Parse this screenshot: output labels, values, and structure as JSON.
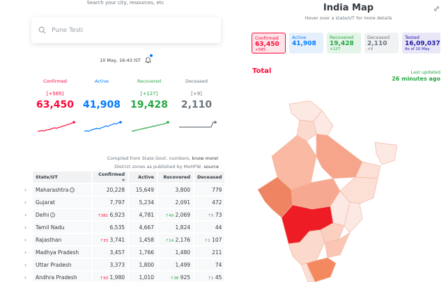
{
  "search": {
    "hint": "Search your city, resources, etc",
    "placeholder": "Pune Testi"
  },
  "date": "10 May, 16:43 IST",
  "stats": [
    {
      "label": "Confirmed",
      "delta": "[+585]",
      "value": "63,450",
      "color": "#ff073a"
    },
    {
      "label": "Active",
      "delta": "",
      "value": "41,908",
      "color": "#007bff"
    },
    {
      "label": "Recovered",
      "delta": "[+127]",
      "value": "19,428",
      "color": "#28a745"
    },
    {
      "label": "Deceased",
      "delta": "[+9]",
      "value": "2,110",
      "color": "#6c757d"
    }
  ],
  "sparklines": [
    {
      "color": "#ff073a",
      "values": [
        5,
        6,
        7,
        6,
        8,
        9,
        10,
        12,
        13,
        12,
        14,
        15,
        17,
        18,
        20,
        21,
        23,
        25
      ]
    },
    {
      "color": "#007bff",
      "values": [
        5,
        6,
        5,
        7,
        8,
        9,
        10,
        9,
        11,
        12,
        14,
        13,
        15,
        16,
        18,
        17,
        19,
        20
      ]
    },
    {
      "color": "#28a745",
      "values": [
        3,
        3,
        4,
        4,
        5,
        5,
        6,
        6,
        7,
        7,
        8,
        8,
        9,
        9,
        10,
        10,
        11,
        12
      ]
    },
    {
      "color": "#6c757d",
      "values": [
        4,
        4,
        4,
        4,
        4,
        4,
        4,
        4,
        4,
        4,
        4,
        4,
        4,
        4,
        4,
        4,
        5,
        5
      ]
    }
  ],
  "compiled": {
    "line1_pre": "Compiled from State Govt. numbers, ",
    "line1_link": "know more!",
    "line2_pre": "District zones as published by MoHFW, ",
    "line2_link": "source"
  },
  "table": {
    "headers": [
      "State/UT",
      "Confirmed",
      "Active",
      "Recovered",
      "Deceased"
    ],
    "sort_icon": "▼",
    "rows": [
      {
        "name": "Maharashtra",
        "info": true,
        "c_d": "",
        "c": "20,228",
        "a": "15,649",
        "r_d": "",
        "r": "3,800",
        "d_d": "",
        "d": "779"
      },
      {
        "name": "Gujarat",
        "info": false,
        "c_d": "",
        "c": "7,797",
        "a": "5,234",
        "r_d": "",
        "r": "2,091",
        "d_d": "",
        "d": "472"
      },
      {
        "name": "Delhi",
        "info": true,
        "c_d": "↑381",
        "c": "6,923",
        "a": "4,781",
        "r_d": "↑49",
        "r": "2,069",
        "d_d": "↑5",
        "d": "73"
      },
      {
        "name": "Tamil Nadu",
        "info": false,
        "c_d": "",
        "c": "6,535",
        "a": "4,667",
        "r_d": "",
        "r": "1,824",
        "d_d": "",
        "d": "44"
      },
      {
        "name": "Rajasthan",
        "info": false,
        "c_d": "↑33",
        "c": "3,741",
        "a": "1,458",
        "r_d": "↑14",
        "r": "2,176",
        "d_d": "↑1",
        "d": "107"
      },
      {
        "name": "Madhya Pradesh",
        "info": false,
        "c_d": "",
        "c": "3,457",
        "a": "1,766",
        "r_d": "",
        "r": "1,480",
        "d_d": "",
        "d": "211"
      },
      {
        "name": "Uttar Pradesh",
        "info": false,
        "c_d": "",
        "c": "3,373",
        "a": "1,800",
        "r_d": "",
        "r": "1,499",
        "d_d": "",
        "d": "74"
      },
      {
        "name": "Andhra Pradesh",
        "info": false,
        "c_d": "↑50",
        "c": "1,980",
        "a": "1,010",
        "r_d": "↑38",
        "r": "925",
        "d_d": "↑1",
        "d": "45"
      }
    ]
  },
  "map": {
    "title": "India Map",
    "subtitle": "Hover over a state/UT for more details",
    "tiles": [
      {
        "label": "Confirmed",
        "value": "63,450",
        "delta": "+585",
        "bg": "#fde5e9",
        "fg": "#ff073a"
      },
      {
        "label": "Active",
        "value": "41,908",
        "delta": "",
        "bg": "#e6f0fd",
        "fg": "#007bff"
      },
      {
        "label": "Recovered",
        "value": "19,428",
        "delta": "+127",
        "bg": "#e4f4e8",
        "fg": "#28a745"
      },
      {
        "label": "Deceased",
        "value": "2,110",
        "delta": "+9",
        "bg": "#f1f2f3",
        "fg": "#6c757d"
      },
      {
        "label": "Tested",
        "value": "16,09,037",
        "delta": "As of 10 May",
        "bg": "#e8e6f7",
        "fg": "#201aa2"
      }
    ],
    "region": "Total",
    "updated_label": "Last updated",
    "updated_value": "26 minutes ago"
  }
}
